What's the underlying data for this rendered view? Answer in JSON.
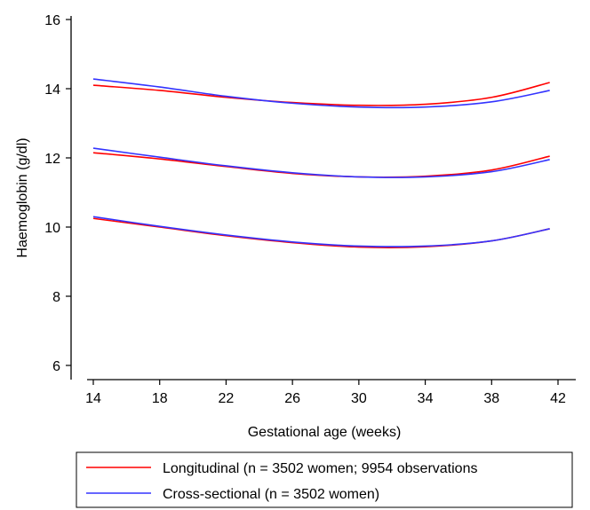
{
  "chart_data": {
    "type": "line",
    "xlabel": "Gestational age (weeks)",
    "ylabel": "Haemoglobin (g/dl)",
    "xlim": [
      14,
      42
    ],
    "ylim": [
      6,
      16
    ],
    "xticks": [
      14,
      18,
      22,
      26,
      30,
      34,
      38,
      42
    ],
    "yticks": [
      6,
      8,
      10,
      12,
      14,
      16
    ],
    "grid": false,
    "legend_position": "bottom",
    "colors": {
      "longitudinal": "#ff0000",
      "cross_sectional": "#3333ff"
    },
    "series": [
      {
        "name": "Longitudinal (n = 3502 women; 9954 observations",
        "group": "longitudinal",
        "lines": [
          {
            "x": [
              14,
              18,
              22,
              26,
              30,
              34,
              38,
              41.5
            ],
            "y": [
              14.1,
              13.95,
              13.75,
              13.6,
              13.52,
              13.55,
              13.75,
              14.18
            ]
          },
          {
            "x": [
              14,
              18,
              22,
              26,
              30,
              34,
              38,
              41.5
            ],
            "y": [
              12.15,
              11.97,
              11.75,
              11.55,
              11.45,
              11.47,
              11.65,
              12.05
            ]
          },
          {
            "x": [
              14,
              18,
              22,
              26,
              30,
              34,
              38,
              41.5
            ],
            "y": [
              10.25,
              10.0,
              9.75,
              9.55,
              9.42,
              9.43,
              9.6,
              9.95
            ]
          }
        ]
      },
      {
        "name": "Cross-sectional (n = 3502 women)",
        "group": "cross_sectional",
        "lines": [
          {
            "x": [
              14,
              18,
              22,
              26,
              30,
              34,
              38,
              41.5
            ],
            "y": [
              14.28,
              14.05,
              13.78,
              13.58,
              13.47,
              13.47,
              13.62,
              13.95
            ]
          },
          {
            "x": [
              14,
              18,
              22,
              26,
              30,
              34,
              38,
              41.5
            ],
            "y": [
              12.28,
              12.02,
              11.77,
              11.57,
              11.45,
              11.45,
              11.6,
              11.95
            ]
          },
          {
            "x": [
              14,
              18,
              22,
              26,
              30,
              34,
              38,
              41.5
            ],
            "y": [
              10.3,
              10.02,
              9.77,
              9.57,
              9.45,
              9.45,
              9.6,
              9.95
            ]
          }
        ]
      }
    ]
  }
}
